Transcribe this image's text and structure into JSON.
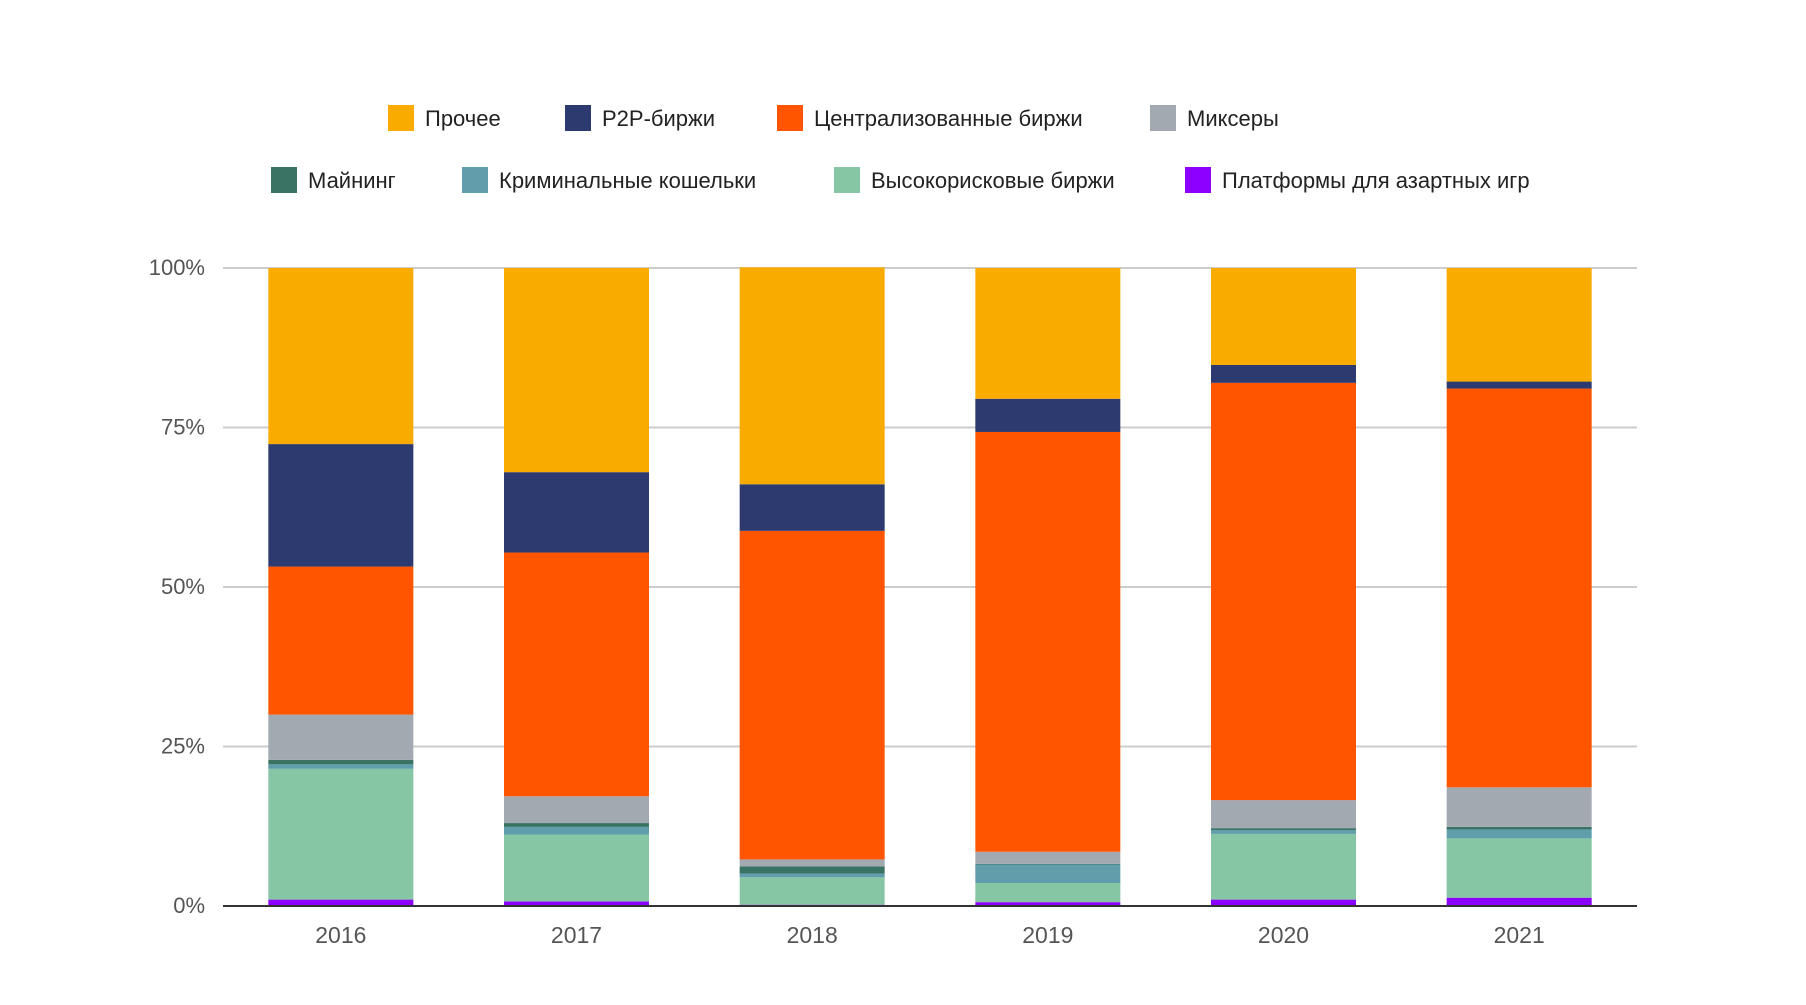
{
  "chart_data": {
    "type": "bar",
    "stacked": true,
    "categories": [
      "2016",
      "2017",
      "2018",
      "2019",
      "2020",
      "2021"
    ],
    "yticks": [
      "0%",
      "25%",
      "50%",
      "75%",
      "100%"
    ],
    "ylim": [
      0,
      100
    ],
    "grid": true,
    "legend_position": "top",
    "series": [
      {
        "name": "Платформы для азартных игр",
        "color": "#8B00FF",
        "values": [
          1.0,
          0.7,
          0.2,
          0.6,
          1.0,
          1.3
        ]
      },
      {
        "name": "Высокорисковые биржи",
        "color": "#86C6A4",
        "values": [
          20.5,
          10.5,
          4.3,
          3.0,
          10.3,
          9.3
        ]
      },
      {
        "name": "Криминальные кошельки",
        "color": "#5F9EAA",
        "values": [
          0.7,
          1.2,
          0.6,
          2.9,
          0.6,
          1.4
        ]
      },
      {
        "name": "Майнинг",
        "color": "#3A7364",
        "values": [
          0.7,
          0.6,
          1.1,
          0.1,
          0.3,
          0.4
        ]
      },
      {
        "name": "Миксеры",
        "color": "#A3A9B1",
        "values": [
          7.1,
          4.2,
          1.1,
          1.9,
          4.4,
          6.2
        ]
      },
      {
        "name": "Централизованные биржи",
        "color": "#FF5500",
        "values": [
          23.2,
          38.2,
          51.5,
          65.8,
          65.4,
          62.5
        ]
      },
      {
        "name": "P2P-биржи",
        "color": "#2C3A70",
        "values": [
          19.2,
          12.6,
          7.3,
          5.2,
          2.8,
          1.1
        ]
      },
      {
        "name": "Прочее",
        "color": "#F9AB00",
        "values": [
          27.6,
          32.0,
          34.0,
          20.5,
          15.2,
          17.8
        ]
      }
    ],
    "legend_rows": [
      [
        "Прочее",
        "P2P-биржи",
        "Централизованные биржи",
        "Миксеры"
      ],
      [
        "Майнинг",
        "Криминальные кошельки",
        "Высокорисковые биржи",
        "Платформы для азартных игр"
      ]
    ]
  }
}
